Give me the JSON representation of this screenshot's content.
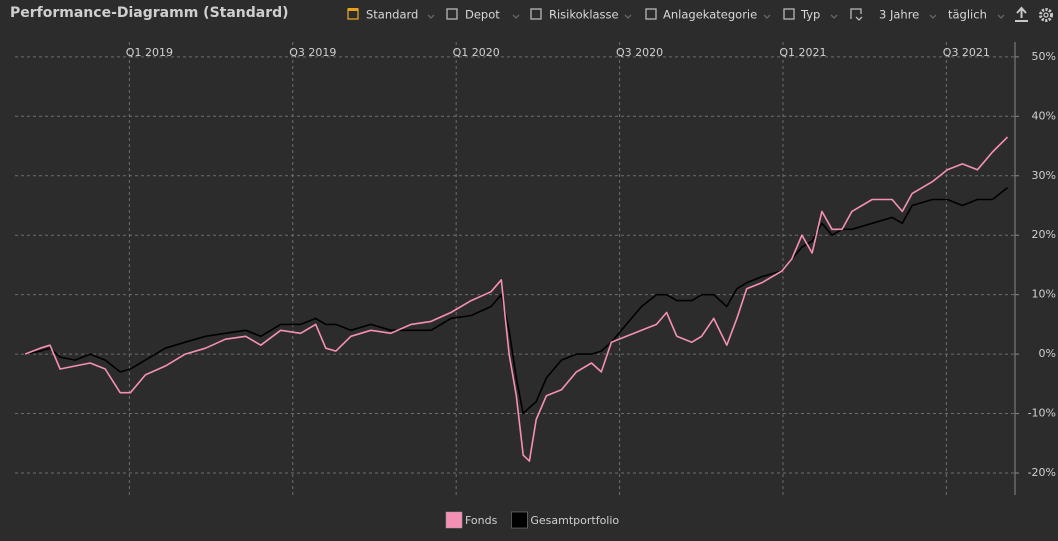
{
  "header": {
    "title": "Performance-Diagramm (Standard)",
    "toolbar": [
      "Standard",
      "Depot",
      "Risikoklasse",
      "Anlagekategorie",
      "Typ",
      "3 Jahre",
      "täglich"
    ]
  },
  "chart_data": {
    "type": "line",
    "x": [
      2018.681,
      2018.727,
      2018.757,
      2018.788,
      2018.834,
      2018.88,
      2018.926,
      2018.972,
      2019.003,
      2019.049,
      2019.11,
      2019.171,
      2019.233,
      2019.294,
      2019.356,
      2019.402,
      2019.463,
      2019.524,
      2019.57,
      2019.601,
      2019.632,
      2019.678,
      2019.739,
      2019.8,
      2019.862,
      2019.923,
      2019.984,
      2020.046,
      2020.107,
      2020.138,
      2020.162,
      2020.184,
      2020.205,
      2020.224,
      2020.245,
      2020.276,
      2020.322,
      2020.368,
      2020.414,
      2020.444,
      2020.475,
      2020.521,
      2020.567,
      2020.613,
      2020.644,
      2020.675,
      2020.721,
      2020.751,
      2020.788,
      2020.828,
      2020.859,
      2020.889,
      2020.935,
      2020.997,
      2021.027,
      2021.058,
      2021.089,
      2021.119,
      2021.15,
      2021.181,
      2021.211,
      2021.273,
      2021.334,
      2021.365,
      2021.395,
      2021.457,
      2021.503,
      2021.549,
      2021.595,
      2021.641,
      2021.687
    ],
    "series": [
      {
        "name": "Fonds",
        "color": "#f490b4",
        "values": [
          0,
          1,
          1.5,
          -2.5,
          -2,
          -1.5,
          -2.5,
          -6.5,
          -6.5,
          -3.5,
          -2,
          0,
          1,
          2.5,
          3,
          1.5,
          4,
          3.5,
          5,
          1,
          0.5,
          3,
          4,
          3.5,
          5,
          5.5,
          7,
          9,
          10.5,
          12.5,
          0,
          -7,
          -17,
          -18,
          -11,
          -7,
          -6,
          -3,
          -1.5,
          -3,
          2,
          3,
          4,
          5,
          7,
          3,
          2,
          3,
          6,
          1.5,
          6,
          11,
          12,
          14,
          16,
          20,
          17,
          24,
          21,
          21,
          24,
          26,
          26,
          24,
          27,
          29,
          31,
          32,
          31,
          34,
          36.5
        ]
      },
      {
        "name": "Gesamtportfolio",
        "color": "#000000",
        "values": [
          0,
          0.5,
          1,
          -0.5,
          -1,
          0,
          -1,
          -3,
          -2.5,
          -1,
          1,
          2,
          3,
          3.5,
          4,
          3,
          5,
          5,
          6,
          5,
          5,
          4,
          5,
          4,
          4,
          4,
          6,
          6.5,
          8,
          10,
          4,
          -4,
          -10,
          -9,
          -8,
          -4,
          -1,
          0,
          0,
          0.5,
          2,
          5,
          8,
          10,
          10,
          9,
          9,
          10,
          10,
          8,
          11,
          12,
          13,
          14,
          16,
          18,
          19,
          22,
          20,
          21,
          21,
          22,
          23,
          22,
          25,
          26,
          26,
          25,
          26,
          26,
          28
        ]
      }
    ],
    "xlim": [
      2018.65,
      2021.71
    ],
    "xticks": [
      {
        "value": 2019.0,
        "label": "Q1 2019"
      },
      {
        "value": 2019.5,
        "label": "Q3 2019"
      },
      {
        "value": 2020.0,
        "label": "Q1 2020"
      },
      {
        "value": 2020.5,
        "label": "Q3 2020"
      },
      {
        "value": 2021.0,
        "label": "Q1 2021"
      },
      {
        "value": 2021.5,
        "label": "Q3 2021"
      }
    ],
    "ylim": [
      -23.7,
      52.5
    ],
    "yticks": [
      {
        "value": -20,
        "label": "-20%"
      },
      {
        "value": -10,
        "label": "-10%"
      },
      {
        "value": 0,
        "label": "0%"
      },
      {
        "value": 10,
        "label": "10%"
      },
      {
        "value": 20,
        "label": "20%"
      },
      {
        "value": 30,
        "label": "30%"
      },
      {
        "value": 40,
        "label": "40%"
      },
      {
        "value": 50,
        "label": "50%"
      }
    ],
    "grid": true,
    "legend": "bottom"
  }
}
